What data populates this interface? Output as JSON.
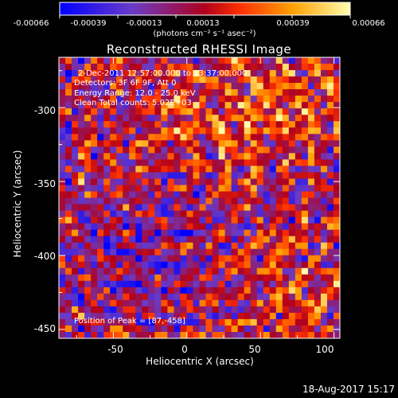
{
  "colorbar": {
    "ticks": [
      "-0.00066",
      "-0.00039",
      "-0.00013",
      "0.00013",
      "0.00039",
      "0.00066"
    ],
    "unit": "(photons cm⁻² s⁻¹ asec⁻²)"
  },
  "chart_data": {
    "type": "heatmap",
    "title": "Reconstructed RHESSI Image",
    "xlabel": "Heliocentric X (arcsec)",
    "ylabel": "Heliocentric Y (arcsec)",
    "xlim": [
      -87,
      104
    ],
    "ylim": [
      -456,
      -266
    ],
    "xticks": [
      -50,
      0,
      50,
      100
    ],
    "yticks": [
      -300,
      -350,
      -400,
      -450
    ],
    "value_range": [
      -0.00066,
      0.00066
    ],
    "annotations": [
      "2-Dec-2011 12:57:00.000 to 13:37:00.000",
      "Detectors: 3F 6F 9F, Att 0",
      "Energy Range: 12.0 - 25.0 keV",
      "Clean    Total counts: 5.02E+03"
    ],
    "peak_label": "Position of Peak = [87,-458]",
    "peak": [
      87,
      -458
    ],
    "colormap": [
      "#0000ff",
      "#6a3bc7",
      "#b0001c",
      "#ff3000",
      "#ffa000",
      "#ffffb0"
    ]
  },
  "footer": {
    "timestamp": "18-Aug-2017 15:17"
  }
}
